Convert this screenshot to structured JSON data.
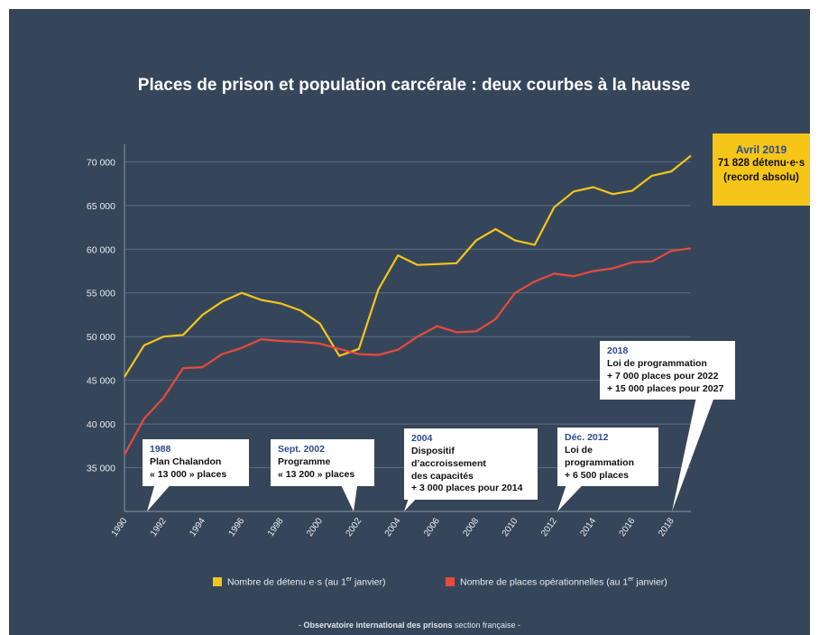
{
  "chart_data": {
    "type": "line",
    "title": "Places de prison et population carcérale : deux courbes à la hausse",
    "x": [
      1990,
      1991,
      1992,
      1993,
      1994,
      1995,
      1996,
      1997,
      1998,
      1999,
      2000,
      2001,
      2002,
      2003,
      2004,
      2005,
      2006,
      2007,
      2008,
      2009,
      2010,
      2011,
      2012,
      2013,
      2014,
      2015,
      2016,
      2017,
      2018,
      2019
    ],
    "xticks": [
      "1990",
      "1992",
      "1994",
      "1996",
      "1998",
      "2000",
      "2002",
      "2004",
      "2006",
      "2008",
      "2010",
      "2012",
      "2014",
      "2016",
      "2018"
    ],
    "ylim": [
      30000,
      72000
    ],
    "yticks": [
      35000,
      40000,
      45000,
      50000,
      55000,
      60000,
      65000,
      70000
    ],
    "ytick_labels": [
      "35 000",
      "40 000",
      "45 000",
      "50 000",
      "55 000",
      "60 000",
      "65 000",
      "70 000"
    ],
    "grid": true,
    "series": [
      {
        "name": "Nombre de détenu·e·s (au 1er janvier)",
        "color": "#f5c518",
        "values": [
          45400,
          49000,
          50000,
          50200,
          52500,
          54000,
          55000,
          54200,
          53800,
          53000,
          51500,
          47800,
          48600,
          55400,
          59300,
          58200,
          58300,
          58400,
          61000,
          62300,
          61000,
          60500,
          64800,
          66600,
          67100,
          66300,
          66700,
          68400,
          68900,
          70700
        ]
      },
      {
        "name": "Nombre de places opérationnelles (au 1er janvier)",
        "color": "#e84a3c",
        "values": [
          36500,
          40600,
          43000,
          46400,
          46500,
          48000,
          48700,
          49700,
          49500,
          49400,
          49200,
          48600,
          48000,
          47900,
          48500,
          50000,
          51200,
          50500,
          50600,
          52000,
          55000,
          56300,
          57200,
          56900,
          57500,
          57800,
          58500,
          58600,
          59800,
          60100
        ]
      }
    ]
  },
  "legend": {
    "detenus_main": "Nombre de détenu·e·s (au 1",
    "detenus_sup": "er",
    "detenus_end": " janvier)",
    "places_main": "Nombre de places opérationnelles (au 1",
    "places_sup": "er",
    "places_end": " janvier)"
  },
  "record": {
    "date": "Avril 2019",
    "count": "71 828 détenu·e·s",
    "note": "(record absolu)"
  },
  "annotations": [
    {
      "year": "1988",
      "lines": [
        "Plan Chalandon",
        "« 13 000 » places"
      ]
    },
    {
      "year": "Sept. 2002",
      "lines": [
        "Programme",
        "« 13 200 » places"
      ]
    },
    {
      "year": "2004",
      "lines": [
        "Dispositif d’accroissement",
        "des capacités",
        "+ 3 000 places pour 2014"
      ]
    },
    {
      "year": "Déc. 2012",
      "lines": [
        "Loi de",
        "programmation",
        "+ 6 500 places"
      ]
    },
    {
      "year": "2018",
      "lines": [
        "Loi de programmation",
        "+ 7 000 places pour 2022",
        "+ 15 000 places pour 2027"
      ]
    }
  ],
  "credit": {
    "org": "Observatoire international des prisons",
    "section": " section française"
  }
}
